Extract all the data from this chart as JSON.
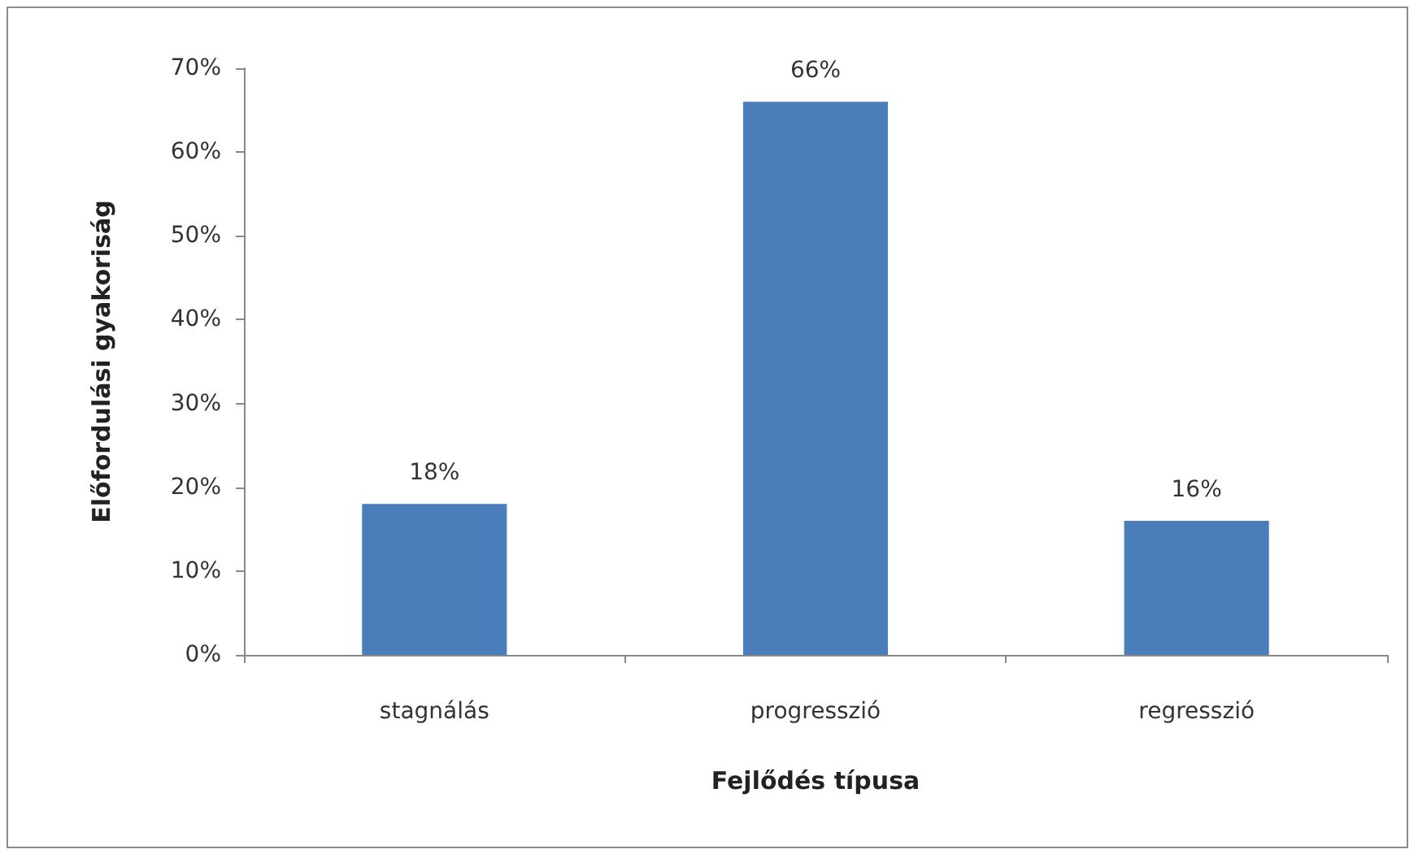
{
  "chart_data": {
    "type": "bar",
    "xlabel": "Fejlődés típusa",
    "ylabel": "Előfordulási gyakoriság",
    "categories": [
      "stagnálás",
      "progresszió",
      "regresszió"
    ],
    "values": [
      18,
      66,
      16
    ],
    "value_labels": [
      "18%",
      "66%",
      "16%"
    ],
    "color": "#4a7ebb",
    "ylim": [
      0,
      70
    ],
    "yticks": [
      {
        "value": 0,
        "label": "0%"
      },
      {
        "value": 10,
        "label": "10%"
      },
      {
        "value": 20,
        "label": "20%"
      },
      {
        "value": 30,
        "label": "30%"
      },
      {
        "value": 40,
        "label": "40%"
      },
      {
        "value": 50,
        "label": "50%"
      },
      {
        "value": 60,
        "label": "60%"
      },
      {
        "value": 70,
        "label": "70%"
      }
    ],
    "grid": false
  }
}
